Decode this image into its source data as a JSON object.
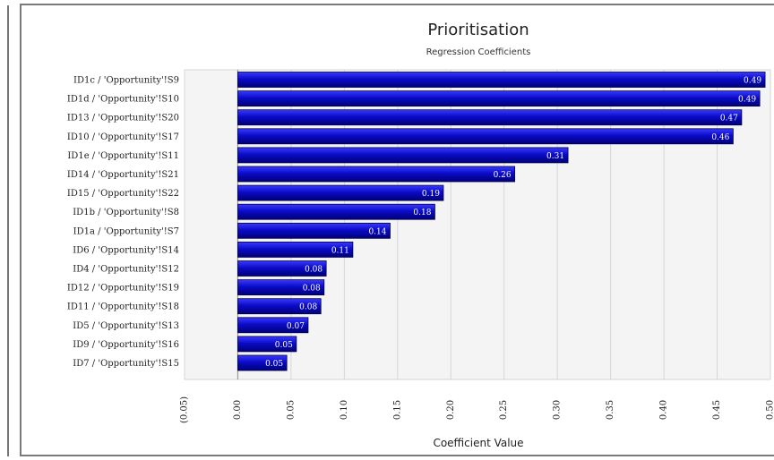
{
  "chart_data": {
    "type": "bar",
    "orientation": "horizontal",
    "title": "Prioritisation",
    "subtitle": "Regression Coefficients",
    "xlabel": "Coefficient Value",
    "ylabel": "",
    "xlim": [
      -0.05,
      0.5
    ],
    "x_ticks": [
      "(0.05)",
      "0.00",
      "0.05",
      "0.10",
      "0.15",
      "0.20",
      "0.25",
      "0.30",
      "0.35",
      "0.40",
      "0.45",
      "0.50"
    ],
    "grid": true,
    "legend": "none",
    "bar_color": "#0a0ab4",
    "categories": [
      "ID1c / 'Opportunity'!S9",
      "ID1d / 'Opportunity'!S10",
      "ID13 / 'Opportunity'!S20",
      "ID10 / 'Opportunity'!S17",
      "ID1e / 'Opportunity'!S11",
      "ID14 / 'Opportunity'!S21",
      "ID15 / 'Opportunity'!S22",
      "ID1b / 'Opportunity'!S8",
      "ID1a / 'Opportunity'!S7",
      "ID6 / 'Opportunity'!S14",
      "ID4 / 'Opportunity'!S12",
      "ID12 / 'Opportunity'!S19",
      "ID11 / 'Opportunity'!S18",
      "ID5 / 'Opportunity'!S13",
      "ID9 / 'Opportunity'!S16",
      "ID7 / 'Opportunity'!S15"
    ],
    "values": [
      0.495,
      0.49,
      0.473,
      0.465,
      0.31,
      0.26,
      0.193,
      0.185,
      0.143,
      0.108,
      0.083,
      0.081,
      0.078,
      0.066,
      0.055,
      0.046
    ],
    "data_labels": [
      "0.49",
      "0.49",
      "0.47",
      "0.46",
      "0.31",
      "0.26",
      "0.19",
      "0.18",
      "0.14",
      "0.11",
      "0.08",
      "0.08",
      "0.08",
      "0.07",
      "0.05",
      "0.05"
    ]
  }
}
